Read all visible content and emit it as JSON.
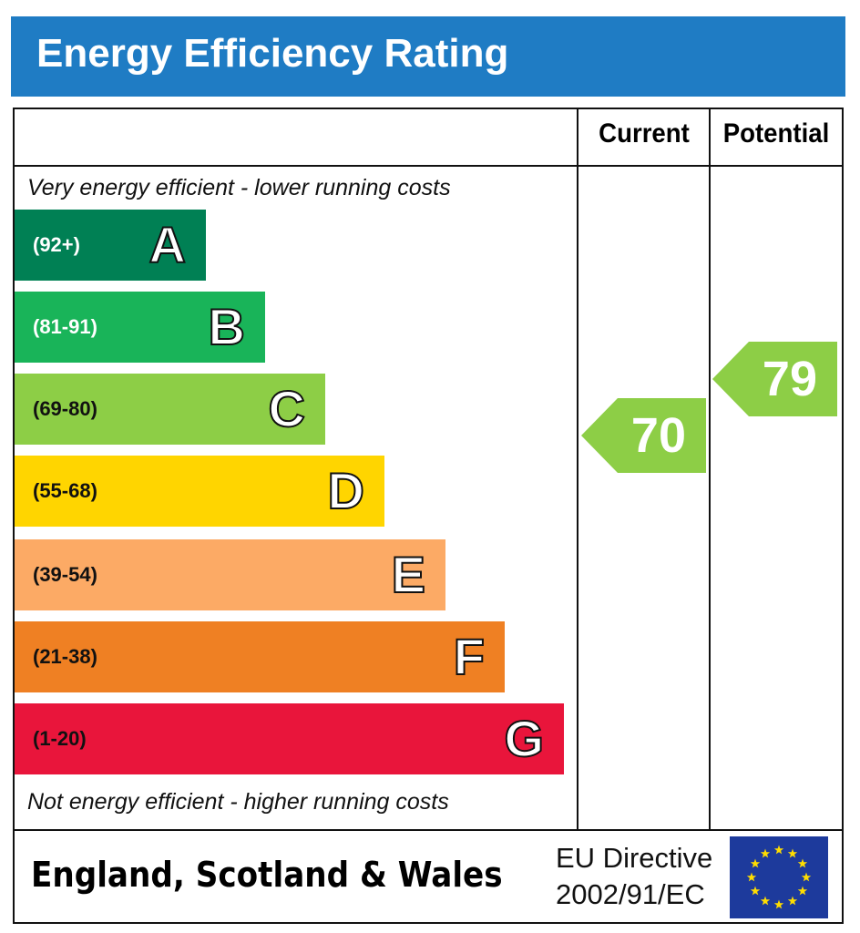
{
  "title": "Energy Efficiency Rating",
  "columns": {
    "current": "Current",
    "potential": "Potential"
  },
  "top_note": "Very energy efficient - lower running costs",
  "bottom_note": "Not energy efficient - higher running costs",
  "footer": {
    "region": "England, Scotland & Wales",
    "directive_line1": "EU Directive",
    "directive_line2": "2002/91/EC",
    "flag": "eu-flag-icon"
  },
  "chart_data": {
    "type": "bar",
    "title": "Energy Efficiency Rating",
    "bands": [
      {
        "letter": "A",
        "range": "(92+)",
        "color": "#008054",
        "range_text_color": "#ffffff"
      },
      {
        "letter": "B",
        "range": "(81-91)",
        "color": "#19b459",
        "range_text_color": "#ffffff"
      },
      {
        "letter": "C",
        "range": "(69-80)",
        "color": "#8dce46",
        "range_text_color": "#111111"
      },
      {
        "letter": "D",
        "range": "(55-68)",
        "color": "#ffd500",
        "range_text_color": "#111111"
      },
      {
        "letter": "E",
        "range": "(39-54)",
        "color": "#fcaa65",
        "range_text_color": "#111111"
      },
      {
        "letter": "F",
        "range": "(21-38)",
        "color": "#ef8023",
        "range_text_color": "#111111"
      },
      {
        "letter": "G",
        "range": "(1-20)",
        "color": "#e9153b",
        "range_text_color": "#111111"
      }
    ],
    "current": {
      "value": "70",
      "band": "C",
      "color": "#8dce46"
    },
    "potential": {
      "value": "79",
      "band": "C",
      "color": "#8dce46"
    }
  }
}
